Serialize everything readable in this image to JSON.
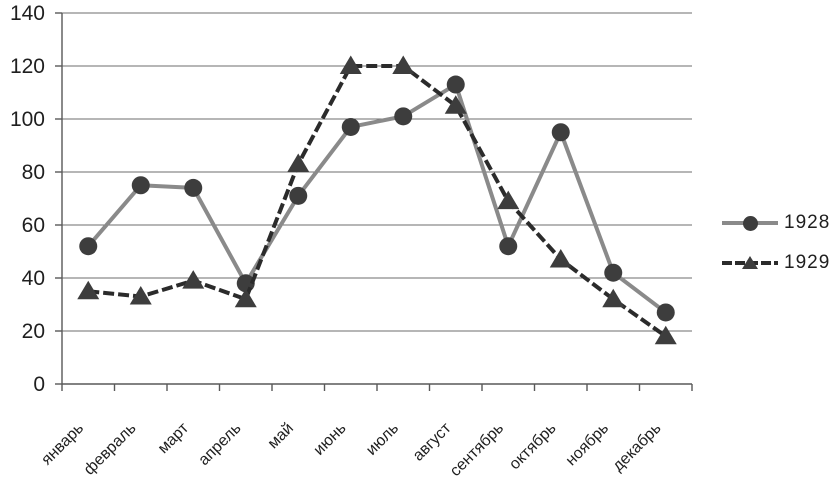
{
  "chart_data": {
    "type": "line",
    "title": "",
    "xlabel": "",
    "ylabel": "",
    "categories": [
      "январь",
      "февраль",
      "март",
      "апрель",
      "май",
      "июнь",
      "июль",
      "август",
      "сентябрь",
      "октябрь",
      "ноябрь",
      "декабрь"
    ],
    "series": [
      {
        "name": "1928",
        "values": [
          52,
          75,
          74,
          38,
          71,
          97,
          101,
          113,
          52,
          95,
          42,
          27
        ],
        "color": "#8a8a8a",
        "marker": "circle",
        "marker_color": "#3d3d3d",
        "line_style": "solid"
      },
      {
        "name": "1929",
        "values": [
          35,
          33,
          39,
          32,
          83,
          120,
          120,
          105,
          69,
          47,
          32,
          18
        ],
        "color": "#2b2b2b",
        "marker": "triangle",
        "marker_color": "#3d3d3d",
        "line_style": "dashed"
      }
    ],
    "ylim": [
      0,
      140
    ],
    "yticks": [
      0,
      20,
      40,
      60,
      80,
      100,
      120,
      140
    ],
    "grid": true,
    "gridline_color": "#6e6e6e",
    "axis_color": "#595959",
    "text_color": "#1f1f1f",
    "legend_position": "right"
  }
}
